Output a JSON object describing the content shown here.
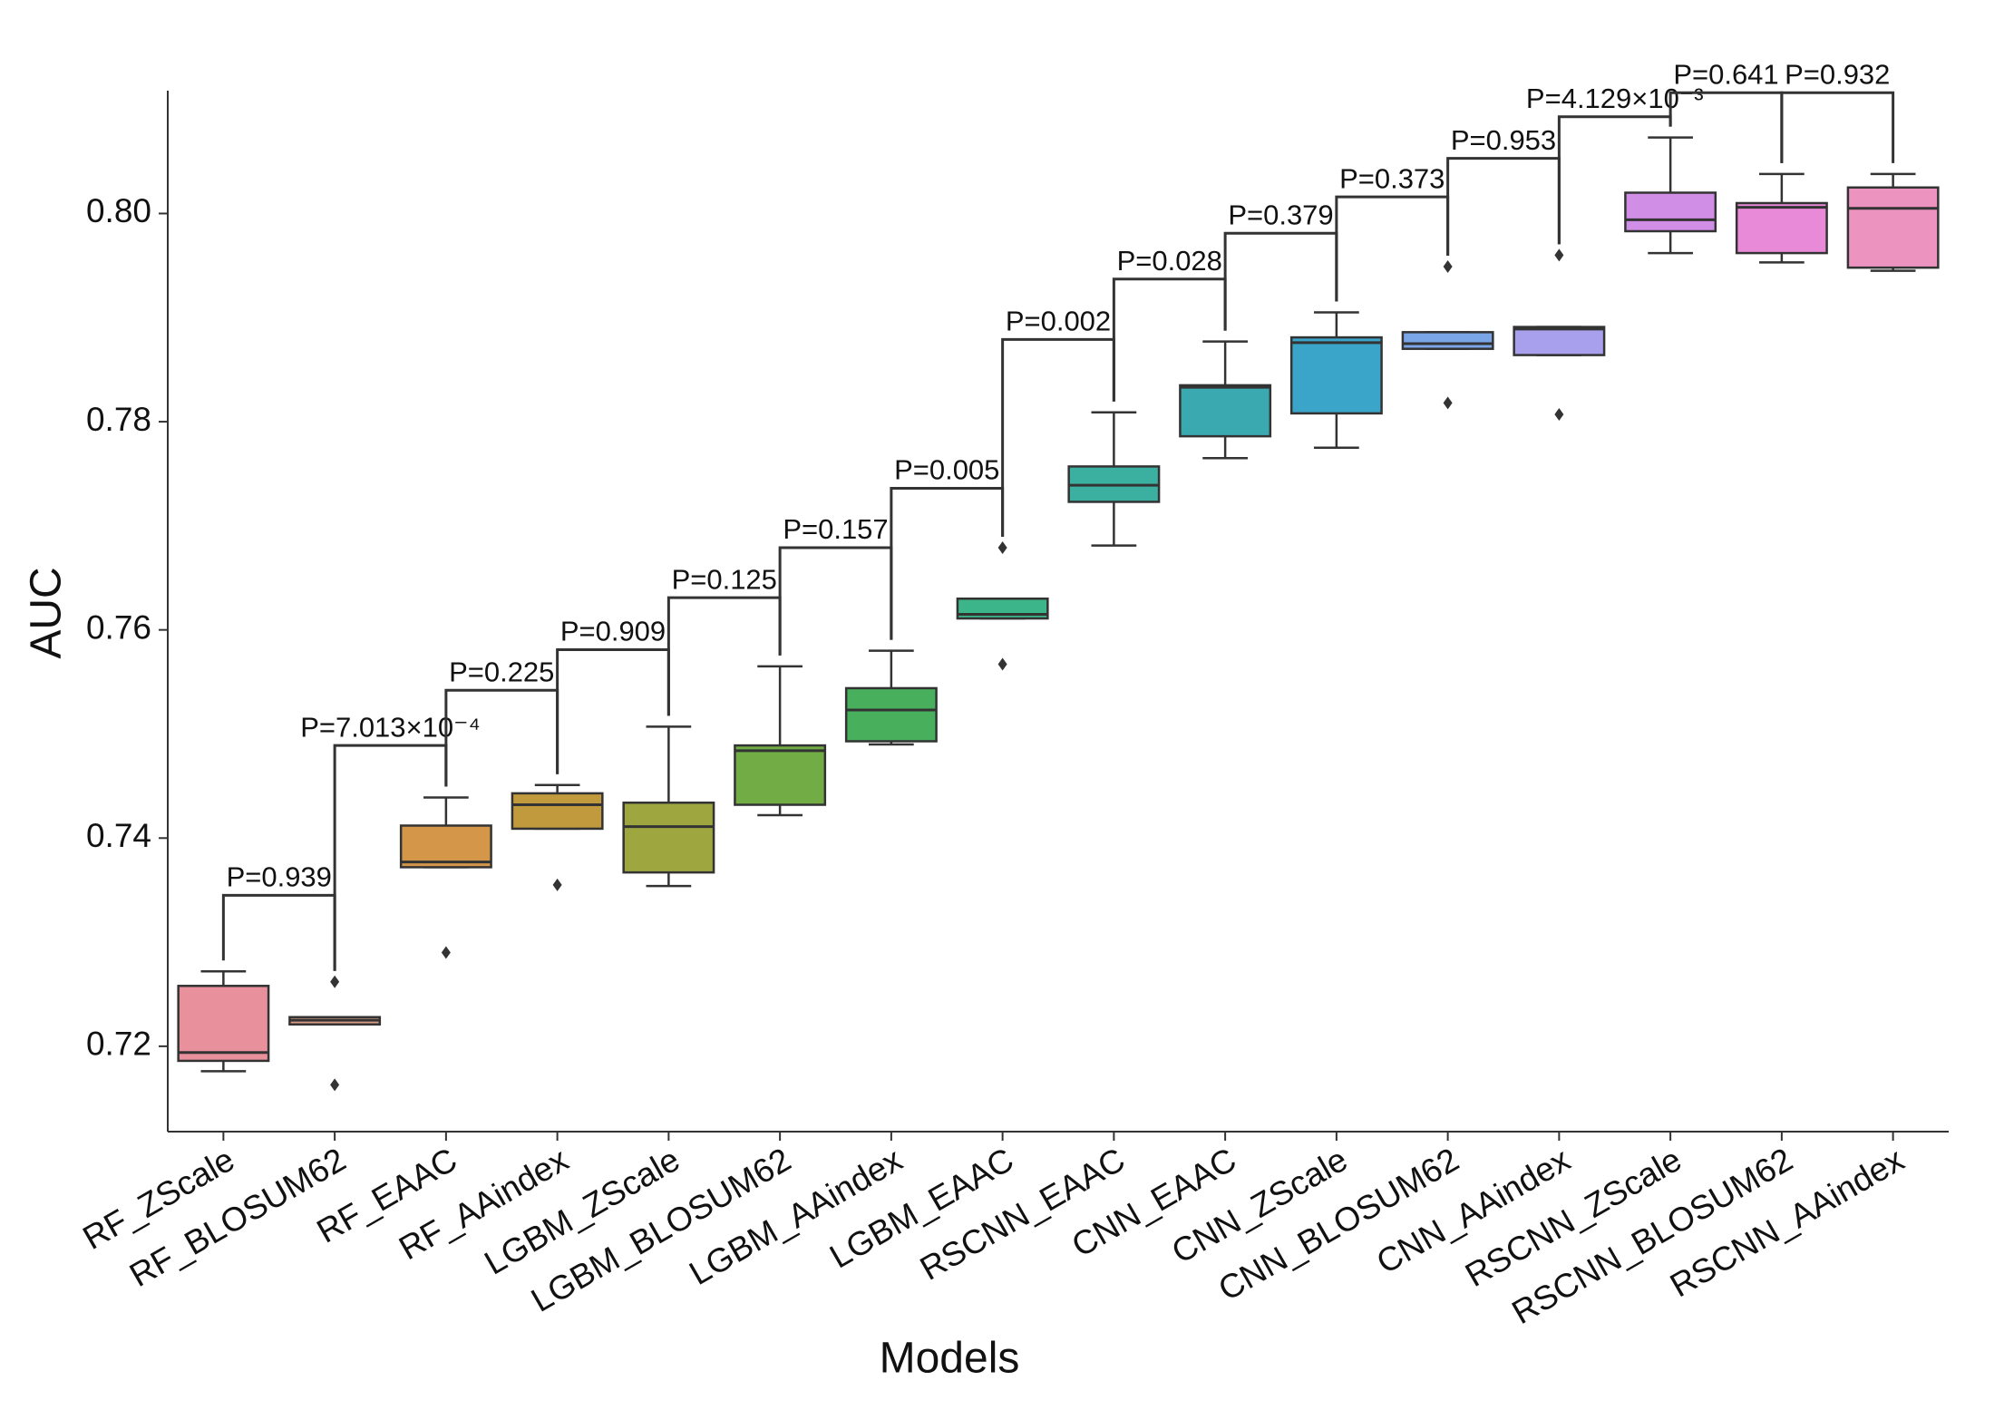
{
  "chart_data": {
    "type": "box",
    "x_label": "Models",
    "y_label": "AUC",
    "categories": [
      "RF_ZScale",
      "RF_BLOSUM62",
      "RF_EAAC",
      "RF_AAindex",
      "LGBM_ZScale",
      "LGBM_BLOSUM62",
      "LGBM_AAindex",
      "LGBM_EAAC",
      "RSCNN_EAAC",
      "CNN_EAAC",
      "CNN_ZScale",
      "CNN_BLOSUM62",
      "CNN_AAindex",
      "RSCNN_ZScale",
      "RSCNN_BLOSUM62",
      "RSCNN_AAindex"
    ],
    "colors": [
      "#e8919c",
      "#d99a86",
      "#d4974a",
      "#c09a3c",
      "#9ea640",
      "#72ac44",
      "#48b05c",
      "#3db58a",
      "#3bb0a0",
      "#3aaab0",
      "#3aa5c8",
      "#7aa6e8",
      "#a8a0ec",
      "#d08ee6",
      "#e88ad8",
      "#ec93bf"
    ],
    "boxes": [
      {
        "low": 0.7176,
        "q1": 0.7186,
        "median": 0.7194,
        "q3": 0.7258,
        "high": 0.7272,
        "outliers": []
      },
      {
        "low": 0.7221,
        "q1": 0.7221,
        "median": 0.7225,
        "q3": 0.7228,
        "high": 0.7228,
        "outliers": [
          0.7262,
          0.7163
        ]
      },
      {
        "low": 0.7372,
        "q1": 0.7372,
        "median": 0.7377,
        "q3": 0.7412,
        "high": 0.7439,
        "outliers": [
          0.729
        ]
      },
      {
        "low": 0.7409,
        "q1": 0.7409,
        "median": 0.7432,
        "q3": 0.7443,
        "high": 0.7451,
        "outliers": [
          0.7355
        ]
      },
      {
        "low": 0.7354,
        "q1": 0.7367,
        "median": 0.7411,
        "q3": 0.7434,
        "high": 0.7507,
        "outliers": []
      },
      {
        "low": 0.7422,
        "q1": 0.7432,
        "median": 0.7484,
        "q3": 0.7489,
        "high": 0.7565,
        "outliers": []
      },
      {
        "low": 0.749,
        "q1": 0.7493,
        "median": 0.7523,
        "q3": 0.7544,
        "high": 0.758,
        "outliers": []
      },
      {
        "low": 0.7611,
        "q1": 0.7611,
        "median": 0.7615,
        "q3": 0.763,
        "high": 0.763,
        "outliers": [
          0.7679,
          0.7567
        ]
      },
      {
        "low": 0.7681,
        "q1": 0.7723,
        "median": 0.7739,
        "q3": 0.7757,
        "high": 0.7809,
        "outliers": []
      },
      {
        "low": 0.7765,
        "q1": 0.7786,
        "median": 0.7833,
        "q3": 0.7835,
        "high": 0.7877,
        "outliers": []
      },
      {
        "low": 0.7775,
        "q1": 0.7808,
        "median": 0.7876,
        "q3": 0.7881,
        "high": 0.7905,
        "outliers": []
      },
      {
        "low": 0.787,
        "q1": 0.787,
        "median": 0.7875,
        "q3": 0.7886,
        "high": 0.7886,
        "outliers": [
          0.7949,
          0.7818
        ]
      },
      {
        "low": 0.7864,
        "q1": 0.7864,
        "median": 0.7889,
        "q3": 0.7891,
        "high": 0.7891,
        "outliers": [
          0.796,
          0.7807
        ]
      },
      {
        "low": 0.7962,
        "q1": 0.7983,
        "median": 0.7994,
        "q3": 0.802,
        "high": 0.8073,
        "outliers": []
      },
      {
        "low": 0.7953,
        "q1": 0.7962,
        "median": 0.8006,
        "q3": 0.801,
        "high": 0.8038,
        "outliers": []
      },
      {
        "low": 0.7945,
        "q1": 0.7948,
        "median": 0.8005,
        "q3": 0.8025,
        "high": 0.8038,
        "outliers": []
      }
    ],
    "comparisons": [
      {
        "label": "P=0.939",
        "y": 0.7345
      },
      {
        "label": "P=7.013×10⁻⁴",
        "y": 0.7489
      },
      {
        "label": "P=0.225",
        "y": 0.7542
      },
      {
        "label": "P=0.909",
        "y": 0.7581
      },
      {
        "label": "P=0.125",
        "y": 0.7631
      },
      {
        "label": "P=0.157",
        "y": 0.7679
      },
      {
        "label": "P=0.005",
        "y": 0.7736
      },
      {
        "label": "P=0.002",
        "y": 0.7879
      },
      {
        "label": "P=0.028",
        "y": 0.7937
      },
      {
        "label": "P=0.379",
        "y": 0.7981
      },
      {
        "label": "P=0.373",
        "y": 0.8016
      },
      {
        "label": "P=0.953",
        "y": 0.8053
      },
      {
        "label": "P=4.129×10⁻³",
        "y": 0.8093
      },
      {
        "label": "P=0.641",
        "y": 0.8116
      },
      {
        "label": "P=0.932",
        "y": 0.8116
      }
    ],
    "ylim": [
      0.7118,
      0.8118
    ],
    "yticks": [
      0.72,
      0.74,
      0.76,
      0.78,
      {
        "value": 0.8,
        "label": "0.80"
      }
    ]
  }
}
